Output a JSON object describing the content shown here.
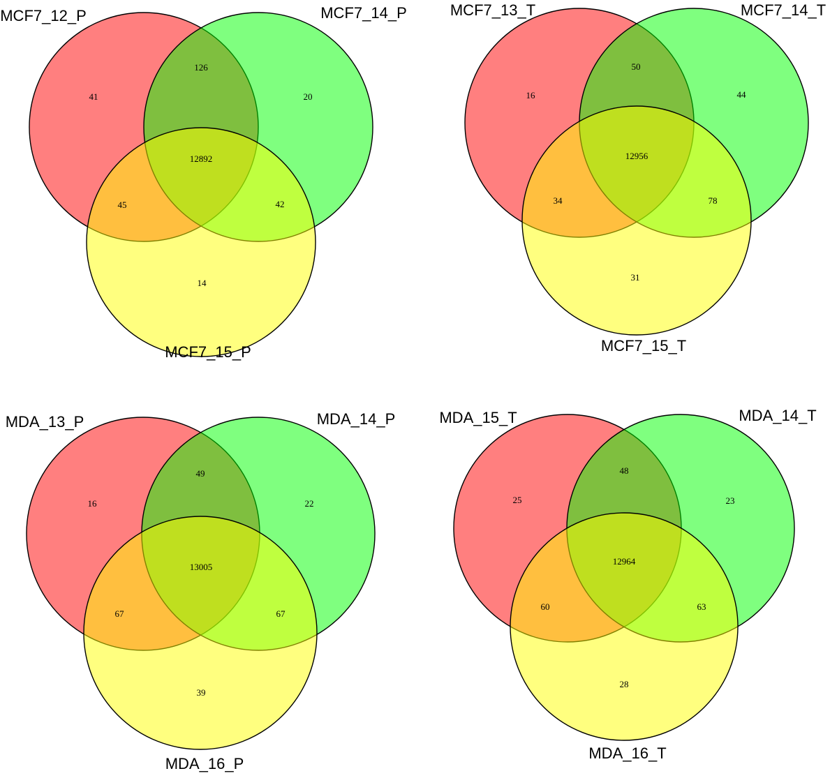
{
  "colors": {
    "set_a": "#ff0000",
    "set_b": "#00ff00",
    "set_c": "#ffff00",
    "outline": "#000000",
    "background": "#ffffff"
  },
  "fill_opacity": 0.5,
  "diagrams": [
    {
      "sets": [
        "MCF7_12_P",
        "MCF7_14_P",
        "MCF7_15_P"
      ],
      "counts": {
        "a_only": "41",
        "b_only": "20",
        "c_only": "14",
        "ab": "126",
        "ac": "45",
        "bc": "42",
        "abc": "12892"
      }
    },
    {
      "sets": [
        "MCF7_13_T",
        "MCF7_14_T",
        "MCF7_15_T"
      ],
      "counts": {
        "a_only": "16",
        "b_only": "44",
        "c_only": "31",
        "ab": "50",
        "ac": "34",
        "bc": "78",
        "abc": "12956"
      }
    },
    {
      "sets": [
        "MDA_13_P",
        "MDA_14_P",
        "MDA_16_P"
      ],
      "counts": {
        "a_only": "16",
        "b_only": "22",
        "c_only": "39",
        "ab": "49",
        "ac": "67",
        "bc": "67",
        "abc": "13005"
      }
    },
    {
      "sets": [
        "MDA_15_T",
        "MDA_14_T",
        "MDA_16_T"
      ],
      "counts": {
        "a_only": "25",
        "b_only": "23",
        "c_only": "28",
        "ab": "48",
        "ac": "60",
        "bc": "63",
        "abc": "12964"
      }
    }
  ]
}
